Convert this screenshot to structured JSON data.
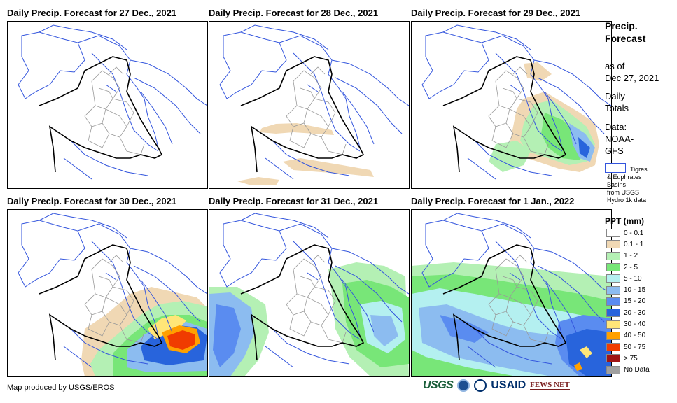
{
  "panels": [
    {
      "title": "Daily Precip. Forecast for 27 Dec., 2021"
    },
    {
      "title": "Daily Precip. Forecast for 28 Dec., 2021"
    },
    {
      "title": "Daily Precip. Forecast for 29 Dec., 2021"
    },
    {
      "title": "Daily Precip. Forecast for 30 Dec., 2021"
    },
    {
      "title": "Daily Precip. Forecast for 31 Dec., 2021"
    },
    {
      "title": "Daily Precip. Forecast for 1 Jan., 2022"
    }
  ],
  "sidebar": {
    "title_line1": "Precip.",
    "title_line2": "Forecast",
    "asof_line1": "as of",
    "asof_line2": "Dec 27, 2021",
    "daily_line1": "Daily",
    "daily_line2": "Totals",
    "data_line1": "Data:",
    "data_line2": "NOAA-",
    "data_line3": "GFS",
    "basin_line1": "Tigres",
    "basin_line2": "& Euphrates",
    "basin_line3": "Basins",
    "basin_line4": "from USGS",
    "basin_line5": "Hydro 1k data"
  },
  "legend": {
    "title": "PPT (mm)",
    "items": [
      {
        "label": "0 - 0.1",
        "color": "#ffffff"
      },
      {
        "label": "0.1 - 1",
        "color": "#f0d8b4"
      },
      {
        "label": "1 - 2",
        "color": "#b4f0b4"
      },
      {
        "label": "2 - 5",
        "color": "#78e678"
      },
      {
        "label": "5 - 10",
        "color": "#b4f0f0"
      },
      {
        "label": "10 - 15",
        "color": "#8cbcf0"
      },
      {
        "label": "15 - 20",
        "color": "#5a8cf0"
      },
      {
        "label": "20 - 30",
        "color": "#2864dc"
      },
      {
        "label": "30 - 40",
        "color": "#ffe678"
      },
      {
        "label": "40 - 50",
        "color": "#ffa000"
      },
      {
        "label": "50 - 75",
        "color": "#f03c00"
      },
      {
        "label": "> 75",
        "color": "#a01414"
      },
      {
        "label": "No Data",
        "color": "#a0a0a0"
      }
    ]
  },
  "credit": "Map produced by USGS/EROS",
  "logos": {
    "usgs": "USGS",
    "usaid": "USAID",
    "fews": "FEWS NET"
  }
}
